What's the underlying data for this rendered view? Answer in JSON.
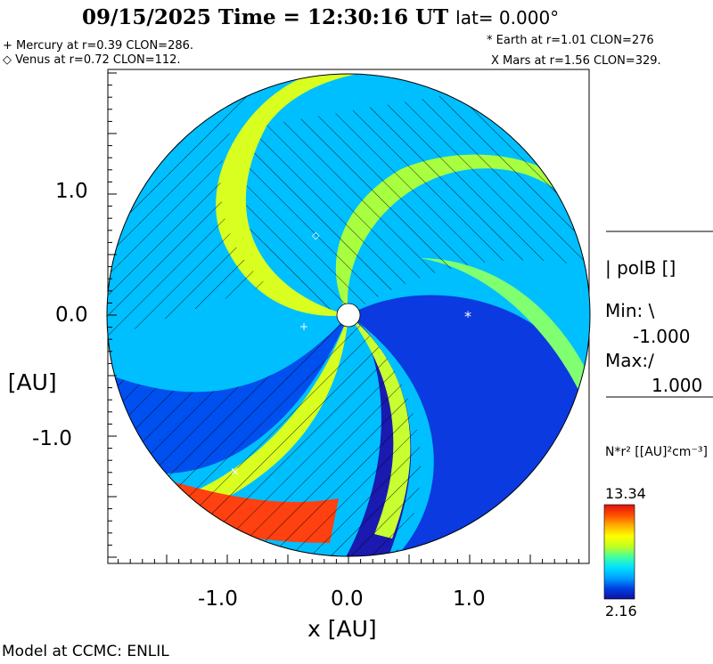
{
  "header": {
    "title": "09/15/2025 Time = 12:30:16 UT",
    "lat": "lat= 0.000°"
  },
  "planets": {
    "mercury": "+ Mercury at r=0.39 CLON=286.",
    "venus": "◇ Venus at r=0.72 CLON=112.",
    "earth": "* Earth at  r=1.01 CLON=276",
    "mars": "X Mars at r=1.56 CLON=329."
  },
  "legend": {
    "field": "| polB []",
    "min_label": "Min: \\",
    "min_value": "-1.000",
    "max_label": "Max:∕",
    "max_value": "1.000"
  },
  "colorbar": {
    "quantity": "N*r² [[AU]²cm⁻³]",
    "max": "13.34",
    "min": "2.16",
    "colors": [
      "#1010a0",
      "#0040e0",
      "#00a0ff",
      "#00e0ff",
      "#40ffa0",
      "#c0ff20",
      "#ffff00",
      "#ffb000",
      "#ff5000",
      "#e01010"
    ]
  },
  "credit": "Model at CCMC: ENLIL",
  "chart_data": {
    "type": "heatmap",
    "title": "09/15/2025 Time = 12:30:16 UT lat= 0.000°",
    "xlabel": "x [AU]",
    "ylabel": "y [AU]",
    "xlim": [
      -2.0,
      2.0
    ],
    "ylim": [
      -2.0,
      2.0
    ],
    "x_ticks": [
      "-1.0",
      "0.0",
      "1.0"
    ],
    "y_ticks": [
      "1.0",
      "0.0",
      "-1.0"
    ],
    "colorbar_range": [
      2.16,
      13.34
    ],
    "planets": [
      {
        "name": "Mercury",
        "r": 0.39,
        "clon": 286,
        "x": -0.38,
        "y": -0.1
      },
      {
        "name": "Venus",
        "r": 0.72,
        "clon": 112,
        "x": -0.27,
        "y": 0.67
      },
      {
        "name": "Earth",
        "r": 1.01,
        "clon": 276,
        "x": 1.01,
        "y": 0.0
      },
      {
        "name": "Mars",
        "r": 1.56,
        "clon": 329,
        "x": -0.95,
        "y": -1.25
      }
    ]
  }
}
